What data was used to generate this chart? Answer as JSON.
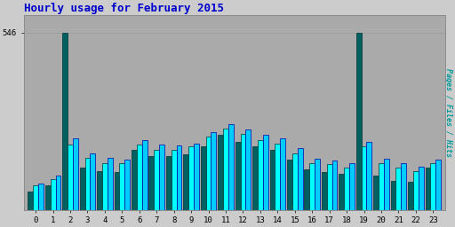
{
  "title": "Hourly usage for February 2015",
  "hours": [
    0,
    1,
    2,
    3,
    4,
    5,
    6,
    7,
    8,
    9,
    10,
    11,
    12,
    13,
    14,
    15,
    16,
    17,
    18,
    19,
    20,
    21,
    22,
    23
  ],
  "pages": [
    55,
    75,
    546,
    130,
    120,
    115,
    185,
    165,
    165,
    170,
    195,
    230,
    210,
    195,
    185,
    155,
    125,
    115,
    110,
    546,
    105,
    90,
    85,
    130
  ],
  "files": [
    75,
    95,
    200,
    160,
    145,
    145,
    200,
    185,
    185,
    195,
    225,
    250,
    235,
    215,
    205,
    175,
    145,
    140,
    130,
    195,
    145,
    130,
    120,
    145
  ],
  "hits": [
    80,
    105,
    220,
    175,
    160,
    155,
    215,
    200,
    198,
    205,
    240,
    265,
    248,
    230,
    220,
    190,
    158,
    152,
    143,
    210,
    158,
    143,
    133,
    155
  ],
  "pages_color": "#006060",
  "files_color": "#00ffff",
  "hits_color": "#00ccff",
  "bg_color": "#cccccc",
  "plot_bg_color": "#aaaaaa",
  "title_color": "#0000cc",
  "ylabel": "Pages / Files / Hits",
  "ylabel_color": "#009999",
  "ytick_label": "546",
  "ytick_value": 546,
  "ymax": 600,
  "bar_width": 0.3,
  "figsize": [
    5.12,
    2.56
  ],
  "dpi": 100
}
